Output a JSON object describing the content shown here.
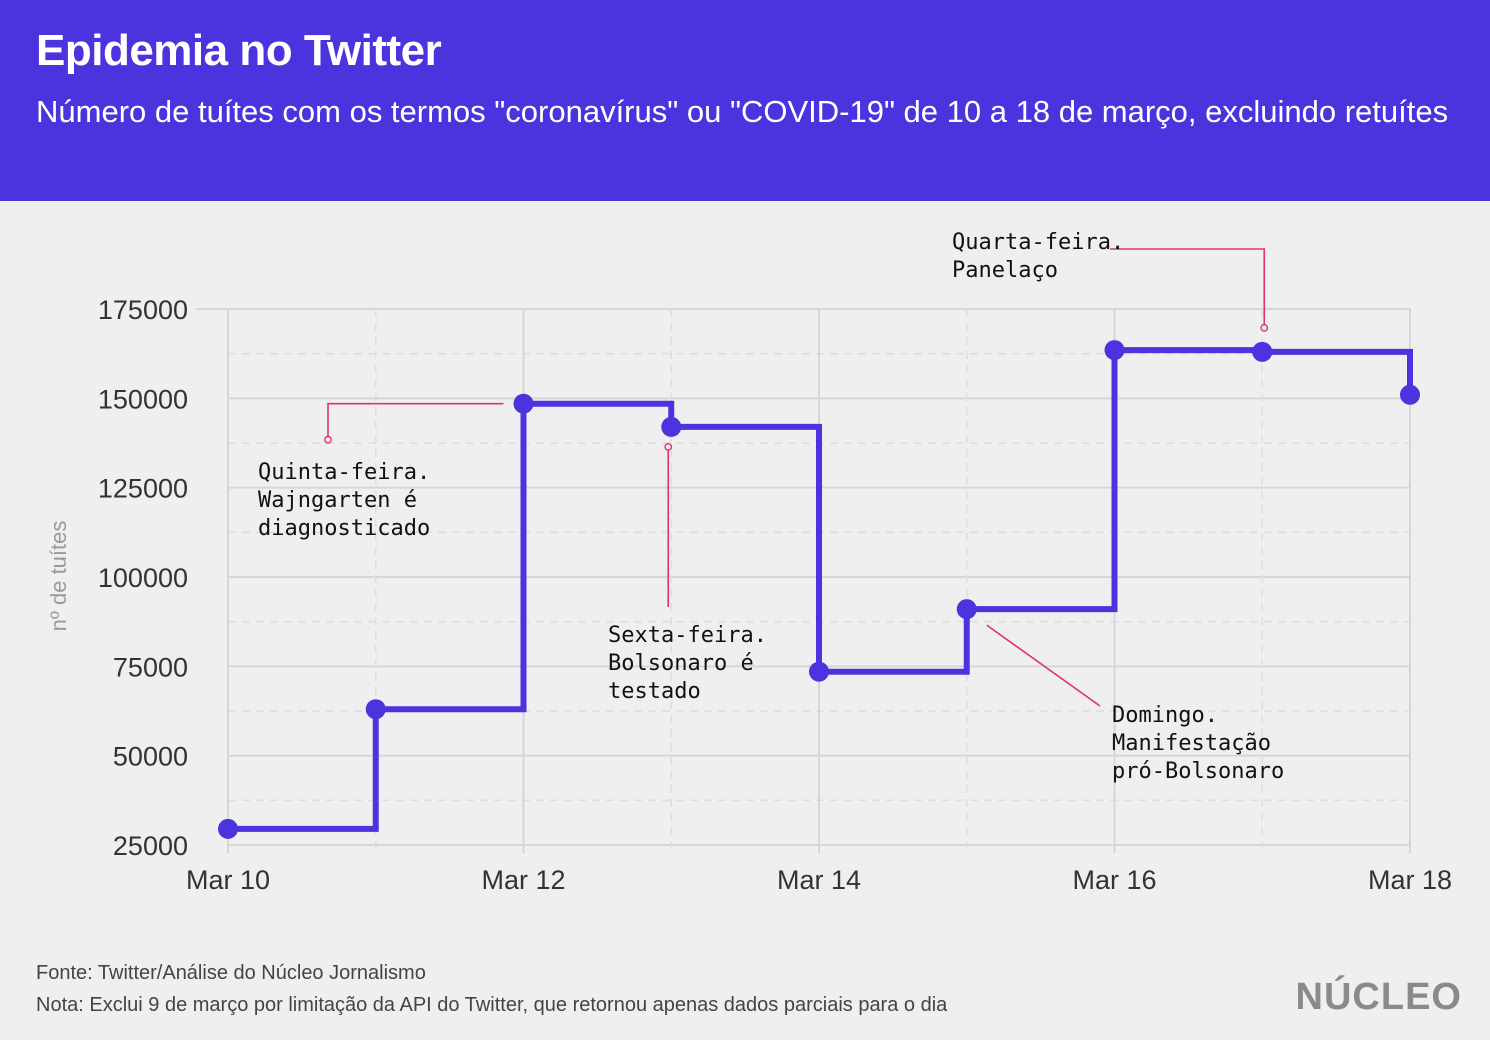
{
  "header": {
    "title": "Epidemia no Twitter",
    "subtitle": "Número de tuítes com os termos \"coronavírus\" ou \"COVID-19\" de 10 a 18 de março, excluindo retuítes"
  },
  "chart_data": {
    "type": "line",
    "step": "after",
    "title": "Epidemia no Twitter",
    "ylabel": "nº de tuítes",
    "xlabel": "",
    "x": [
      "Mar 10",
      "Mar 11",
      "Mar 12",
      "Mar 13",
      "Mar 14",
      "Mar 15",
      "Mar 16",
      "Mar 17",
      "Mar 18"
    ],
    "x_tick_labels": [
      "Mar 10",
      "Mar 12",
      "Mar 14",
      "Mar 16",
      "Mar 18"
    ],
    "values": [
      29500,
      63000,
      148500,
      142000,
      73500,
      91000,
      163500,
      163000,
      151000
    ],
    "ylim": [
      25000,
      175000
    ],
    "y_ticks": [
      25000,
      50000,
      75000,
      100000,
      125000,
      150000,
      175000
    ],
    "grid": true,
    "line_color": "#4b33de",
    "annotation_color": "#e0336b",
    "annotations": [
      {
        "x": "Mar 12",
        "lines": [
          "Quinta-feira.",
          "Wajngarten é",
          "diagnosticado"
        ]
      },
      {
        "x": "Mar 13",
        "lines": [
          "Sexta-feira.",
          "Bolsonaro é",
          "testado"
        ]
      },
      {
        "x": "Mar 15",
        "lines": [
          "Domingo.",
          "Manifestação",
          "pró-Bolsonaro"
        ]
      },
      {
        "x": "Mar 17",
        "lines": [
          "Quarta-feira.",
          "Panelaço"
        ]
      }
    ]
  },
  "footer": {
    "source": "Fonte: Twitter/Análise do Núcleo Jornalismo",
    "note": "Nota: Exclui 9 de março por limitação da API do Twitter, que retornou apenas dados parciais para o dia",
    "logo": "NÚCLEO"
  },
  "colors": {
    "header_bg": "#4b33de",
    "background": "#efefef",
    "line": "#4b33de",
    "annotation": "#e0336b"
  }
}
